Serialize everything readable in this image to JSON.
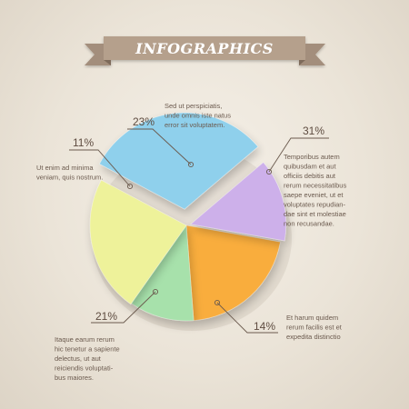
{
  "banner": {
    "title": "INFOGRAPHICS"
  },
  "colors": {
    "background": "#ebe4d8",
    "ribbon": "#b5a08c",
    "ribbon_dark": "#8e7a68",
    "leader": "#6b5a4e"
  },
  "chart_data": {
    "type": "pie",
    "title": "",
    "slices": [
      {
        "label": "31%",
        "value": 31,
        "color": "#8fd0ec",
        "description": [
          "Temporibus autem",
          "quibusdam et aut",
          "officiis debitis aut",
          "rerum necessitatibus",
          "saepe eveniet, ut et",
          "voluptates repudian-",
          "dae sint et molestiae",
          "non recusandae."
        ]
      },
      {
        "label": "14%",
        "value": 14,
        "color": "#cdb0ea",
        "description": [
          "Et harum quidem",
          "rerum facilis est et",
          "expedita distinctio"
        ]
      },
      {
        "label": "21%",
        "value": 21,
        "color": "#f9ad3c",
        "description": [
          "Itaque earum rerum",
          "hic tenetur a sapiente",
          "delectus, ut aut",
          "reiciendis voluptati-",
          "bus maiores."
        ]
      },
      {
        "label": "11%",
        "value": 11,
        "color": "#a7e1ab",
        "description": [
          "Ut enim ad minima",
          "veniam, quis nostrum."
        ]
      },
      {
        "label": "23%",
        "value": 23,
        "color": "#eef29a",
        "description": [
          "Sed ut perspiciatis,",
          "unde omnis iste natus",
          "error sit voluptatem."
        ]
      }
    ]
  }
}
